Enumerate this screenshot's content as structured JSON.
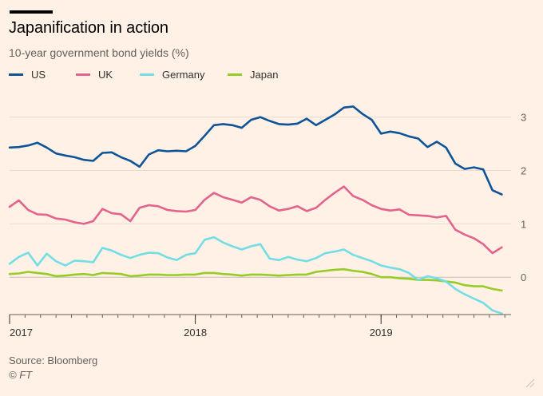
{
  "header": {
    "title": "Japanification in action",
    "subtitle": "10-year government bond yields (%)"
  },
  "footer": {
    "source": "Source: Bloomberg",
    "copyright": "© FT"
  },
  "chart_data": {
    "type": "line",
    "title": "Japanification in action",
    "subtitle": "10-year government bond yields (%)",
    "xlabel": "",
    "ylabel": "",
    "ylim": [
      -0.7,
      3.4
    ],
    "xlim": [
      2017.0,
      2019.7
    ],
    "y_ticks": [
      0,
      1,
      2,
      3
    ],
    "y_tick_labels": [
      "0",
      "1",
      "2",
      "3"
    ],
    "x_ticks": [
      2017,
      2018,
      2019
    ],
    "x_tick_labels": [
      "2017",
      "2018",
      "2019"
    ],
    "grid": true,
    "legend_position": "top-left",
    "series": [
      {
        "name": "US",
        "color": "#0f5499",
        "x": [
          2017.0,
          2017.05,
          2017.1,
          2017.15,
          2017.2,
          2017.25,
          2017.3,
          2017.35,
          2017.4,
          2017.45,
          2017.5,
          2017.55,
          2017.6,
          2017.65,
          2017.7,
          2017.75,
          2017.8,
          2017.85,
          2017.9,
          2017.95,
          2018.0,
          2018.05,
          2018.1,
          2018.15,
          2018.2,
          2018.25,
          2018.3,
          2018.35,
          2018.4,
          2018.45,
          2018.5,
          2018.55,
          2018.6,
          2018.65,
          2018.7,
          2018.75,
          2018.8,
          2018.85,
          2018.9,
          2018.95,
          2019.0,
          2019.05,
          2019.1,
          2019.15,
          2019.2,
          2019.25,
          2019.3,
          2019.35,
          2019.4,
          2019.45,
          2019.5,
          2019.55,
          2019.6,
          2019.65
        ],
        "values": [
          2.43,
          2.44,
          2.47,
          2.52,
          2.43,
          2.32,
          2.28,
          2.25,
          2.2,
          2.18,
          2.33,
          2.34,
          2.25,
          2.18,
          2.07,
          2.3,
          2.38,
          2.36,
          2.37,
          2.36,
          2.46,
          2.65,
          2.85,
          2.87,
          2.85,
          2.8,
          2.95,
          3.0,
          2.93,
          2.87,
          2.86,
          2.88,
          2.97,
          2.85,
          2.95,
          3.05,
          3.18,
          3.2,
          3.06,
          2.95,
          2.69,
          2.73,
          2.7,
          2.64,
          2.6,
          2.44,
          2.54,
          2.43,
          2.13,
          2.03,
          2.06,
          2.02,
          1.63,
          1.55
        ]
      },
      {
        "name": "UK",
        "color": "#e3638c",
        "x": [
          2017.0,
          2017.05,
          2017.1,
          2017.15,
          2017.2,
          2017.25,
          2017.3,
          2017.35,
          2017.4,
          2017.45,
          2017.5,
          2017.55,
          2017.6,
          2017.65,
          2017.7,
          2017.75,
          2017.8,
          2017.85,
          2017.9,
          2017.95,
          2018.0,
          2018.05,
          2018.1,
          2018.15,
          2018.2,
          2018.25,
          2018.3,
          2018.35,
          2018.4,
          2018.45,
          2018.5,
          2018.55,
          2018.6,
          2018.65,
          2018.7,
          2018.75,
          2018.8,
          2018.85,
          2018.9,
          2018.95,
          2019.0,
          2019.05,
          2019.1,
          2019.15,
          2019.2,
          2019.25,
          2019.3,
          2019.35,
          2019.4,
          2019.45,
          2019.5,
          2019.55,
          2019.6,
          2019.65
        ],
        "values": [
          1.32,
          1.44,
          1.26,
          1.18,
          1.17,
          1.1,
          1.08,
          1.03,
          1.0,
          1.05,
          1.28,
          1.2,
          1.18,
          1.05,
          1.3,
          1.35,
          1.33,
          1.26,
          1.24,
          1.23,
          1.26,
          1.45,
          1.58,
          1.5,
          1.45,
          1.4,
          1.5,
          1.45,
          1.33,
          1.25,
          1.28,
          1.33,
          1.24,
          1.3,
          1.45,
          1.58,
          1.7,
          1.52,
          1.45,
          1.35,
          1.28,
          1.25,
          1.27,
          1.17,
          1.16,
          1.15,
          1.12,
          1.15,
          0.89,
          0.8,
          0.73,
          0.62,
          0.45,
          0.56
        ]
      },
      {
        "name": "Germany",
        "color": "#73dde6",
        "x": [
          2017.0,
          2017.05,
          2017.1,
          2017.15,
          2017.2,
          2017.25,
          2017.3,
          2017.35,
          2017.4,
          2017.45,
          2017.5,
          2017.55,
          2017.6,
          2017.65,
          2017.7,
          2017.75,
          2017.8,
          2017.85,
          2017.9,
          2017.95,
          2018.0,
          2018.05,
          2018.1,
          2018.15,
          2018.2,
          2018.25,
          2018.3,
          2018.35,
          2018.4,
          2018.45,
          2018.5,
          2018.55,
          2018.6,
          2018.65,
          2018.7,
          2018.75,
          2018.8,
          2018.85,
          2018.9,
          2018.95,
          2019.0,
          2019.05,
          2019.1,
          2019.15,
          2019.2,
          2019.25,
          2019.3,
          2019.35,
          2019.4,
          2019.45,
          2019.5,
          2019.55,
          2019.6,
          2019.65
        ],
        "values": [
          0.25,
          0.38,
          0.46,
          0.22,
          0.44,
          0.3,
          0.22,
          0.31,
          0.3,
          0.28,
          0.55,
          0.5,
          0.42,
          0.36,
          0.42,
          0.46,
          0.45,
          0.37,
          0.32,
          0.42,
          0.45,
          0.7,
          0.75,
          0.65,
          0.58,
          0.52,
          0.58,
          0.62,
          0.35,
          0.32,
          0.38,
          0.33,
          0.3,
          0.36,
          0.45,
          0.48,
          0.52,
          0.42,
          0.36,
          0.3,
          0.22,
          0.18,
          0.15,
          0.08,
          -0.05,
          0.02,
          -0.02,
          -0.08,
          -0.22,
          -0.32,
          -0.4,
          -0.48,
          -0.62,
          -0.68
        ]
      },
      {
        "name": "Japan",
        "color": "#96cc28",
        "x": [
          2017.0,
          2017.05,
          2017.1,
          2017.15,
          2017.2,
          2017.25,
          2017.3,
          2017.35,
          2017.4,
          2017.45,
          2017.5,
          2017.55,
          2017.6,
          2017.65,
          2017.7,
          2017.75,
          2017.8,
          2017.85,
          2017.9,
          2017.95,
          2018.0,
          2018.05,
          2018.1,
          2018.15,
          2018.2,
          2018.25,
          2018.3,
          2018.35,
          2018.4,
          2018.45,
          2018.5,
          2018.55,
          2018.6,
          2018.65,
          2018.7,
          2018.75,
          2018.8,
          2018.85,
          2018.9,
          2018.95,
          2019.0,
          2019.05,
          2019.1,
          2019.15,
          2019.2,
          2019.25,
          2019.3,
          2019.35,
          2019.4,
          2019.45,
          2019.5,
          2019.55,
          2019.6,
          2019.65
        ],
        "values": [
          0.06,
          0.07,
          0.1,
          0.08,
          0.06,
          0.02,
          0.03,
          0.05,
          0.06,
          0.04,
          0.08,
          0.07,
          0.06,
          0.02,
          0.03,
          0.05,
          0.05,
          0.04,
          0.04,
          0.05,
          0.05,
          0.08,
          0.08,
          0.06,
          0.05,
          0.03,
          0.05,
          0.05,
          0.04,
          0.03,
          0.04,
          0.05,
          0.05,
          0.1,
          0.12,
          0.14,
          0.15,
          0.12,
          0.1,
          0.06,
          0.0,
          0.0,
          -0.02,
          -0.03,
          -0.05,
          -0.05,
          -0.06,
          -0.08,
          -0.1,
          -0.15,
          -0.17,
          -0.17,
          -0.22,
          -0.25
        ]
      }
    ]
  }
}
